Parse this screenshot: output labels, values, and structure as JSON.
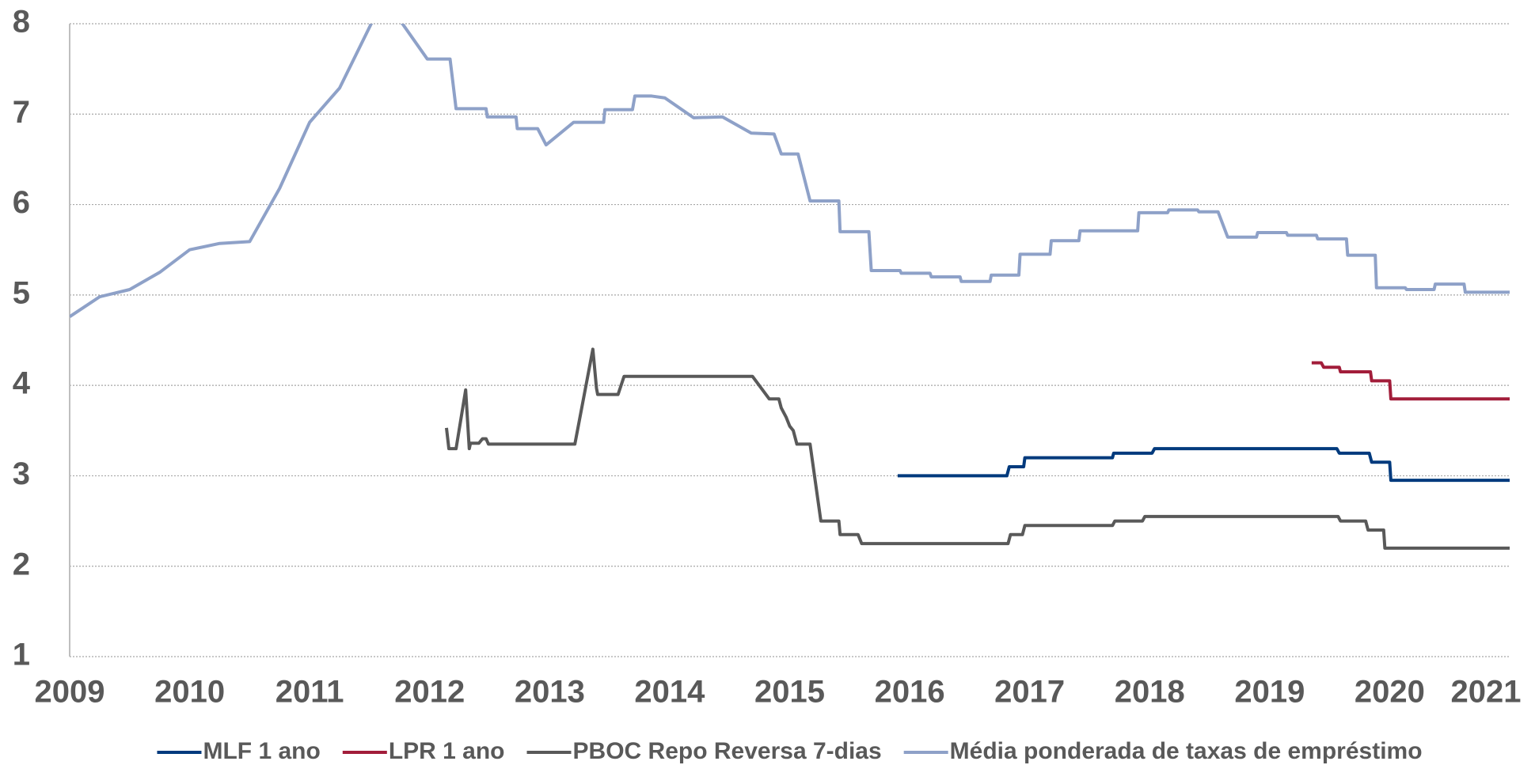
{
  "chart_data": {
    "type": "line",
    "xlim": [
      2009,
      2021
    ],
    "xticks": [
      2009,
      2010,
      2011,
      2012,
      2013,
      2014,
      2015,
      2016,
      2017,
      2018,
      2019,
      2020,
      2021
    ],
    "ylim": [
      1,
      8
    ],
    "yticks": [
      1,
      2,
      3,
      4,
      5,
      6,
      7,
      8
    ],
    "grid": true,
    "legend": "bottom",
    "series": [
      {
        "name": "MLF 1 ano",
        "color": "#003a7d",
        "x": [
          2015.9,
          2016.81,
          2016.83,
          2016.95,
          2016.96,
          2017.69,
          2017.7,
          2018.02,
          2018.04,
          2019.56,
          2019.58,
          2019.83,
          2019.85,
          2020.0,
          2020.01,
          2021.0
        ],
        "values": [
          3.0,
          3.0,
          3.1,
          3.1,
          3.2,
          3.2,
          3.25,
          3.25,
          3.3,
          3.3,
          3.25,
          3.25,
          3.15,
          3.15,
          2.95,
          2.95
        ]
      },
      {
        "name": "LPR 1 ano",
        "color": "#a21d3a",
        "x": [
          2019.35,
          2019.43,
          2019.45,
          2019.58,
          2019.59,
          2019.84,
          2019.85,
          2020.0,
          2020.01,
          2021.0
        ],
        "values": [
          4.25,
          4.25,
          4.2,
          4.2,
          4.15,
          4.15,
          4.05,
          4.05,
          3.85,
          3.85
        ]
      },
      {
        "name": "PBOC Repo Reversa 7-dias",
        "color": "#595959",
        "x": [
          2012.14,
          2012.16,
          2012.22,
          2012.3,
          2012.33,
          2012.34,
          2012.41,
          2012.44,
          2012.47,
          2012.49,
          2013.21,
          2013.36,
          2013.39,
          2013.4,
          2013.57,
          2013.62,
          2014.69,
          2014.83,
          2014.91,
          2014.93,
          2014.97,
          2015.0,
          2015.03,
          2015.06,
          2015.17,
          2015.26,
          2015.41,
          2015.42,
          2015.57,
          2015.6,
          2016.82,
          2016.84,
          2016.94,
          2016.96,
          2017.69,
          2017.71,
          2017.94,
          2017.96,
          2019.57,
          2019.59,
          2019.8,
          2019.82,
          2019.95,
          2019.96,
          2021.0
        ],
        "values": [
          3.53,
          3.3,
          3.3,
          3.95,
          3.3,
          3.36,
          3.36,
          3.41,
          3.41,
          3.35,
          3.35,
          4.4,
          3.97,
          3.9,
          3.9,
          4.1,
          4.1,
          3.85,
          3.85,
          3.75,
          3.65,
          3.55,
          3.5,
          3.35,
          3.35,
          2.5,
          2.5,
          2.35,
          2.35,
          2.25,
          2.25,
          2.35,
          2.35,
          2.45,
          2.45,
          2.5,
          2.5,
          2.55,
          2.55,
          2.5,
          2.5,
          2.4,
          2.4,
          2.2,
          2.2
        ]
      },
      {
        "name": "Média ponderada de taxas de empréstimo",
        "color": "#8ea1c8",
        "x": [
          2009.0,
          2009.25,
          2009.5,
          2009.75,
          2010.0,
          2010.25,
          2010.5,
          2010.75,
          2011.0,
          2011.25,
          2011.55,
          2011.72,
          2011.98,
          2012.17,
          2012.22,
          2012.47,
          2012.48,
          2012.72,
          2012.73,
          2012.9,
          2012.97,
          2013.2,
          2013.45,
          2013.46,
          2013.69,
          2013.71,
          2013.85,
          2013.96,
          2014.2,
          2014.44,
          2014.68,
          2014.87,
          2014.93,
          2015.07,
          2015.17,
          2015.41,
          2015.42,
          2015.66,
          2015.68,
          2015.92,
          2015.93,
          2016.17,
          2016.18,
          2016.42,
          2016.43,
          2016.67,
          2016.68,
          2016.91,
          2016.92,
          2017.17,
          2017.18,
          2017.41,
          2017.42,
          2017.9,
          2017.91,
          2018.15,
          2018.16,
          2018.4,
          2018.41,
          2018.57,
          2018.65,
          2018.89,
          2018.9,
          2019.14,
          2019.15,
          2019.39,
          2019.4,
          2019.64,
          2019.65,
          2019.88,
          2019.89,
          2020.13,
          2020.14,
          2020.37,
          2020.38,
          2020.62,
          2020.63,
          2021.0
        ],
        "values": [
          4.76,
          4.98,
          5.06,
          5.25,
          5.5,
          5.57,
          5.59,
          6.18,
          6.91,
          7.29,
          8.1,
          8.1,
          7.61,
          7.61,
          7.06,
          7.06,
          6.97,
          6.97,
          6.84,
          6.84,
          6.66,
          6.91,
          6.91,
          7.05,
          7.05,
          7.2,
          7.2,
          7.18,
          6.96,
          6.97,
          6.79,
          6.78,
          6.56,
          6.56,
          6.04,
          6.04,
          5.7,
          5.7,
          5.27,
          5.27,
          5.24,
          5.24,
          5.2,
          5.2,
          5.15,
          5.15,
          5.22,
          5.22,
          5.45,
          5.45,
          5.6,
          5.6,
          5.71,
          5.71,
          5.91,
          5.91,
          5.94,
          5.94,
          5.92,
          5.92,
          5.64,
          5.64,
          5.69,
          5.69,
          5.66,
          5.66,
          5.62,
          5.62,
          5.44,
          5.44,
          5.08,
          5.08,
          5.06,
          5.06,
          5.12,
          5.12,
          5.03,
          5.03
        ]
      }
    ]
  }
}
